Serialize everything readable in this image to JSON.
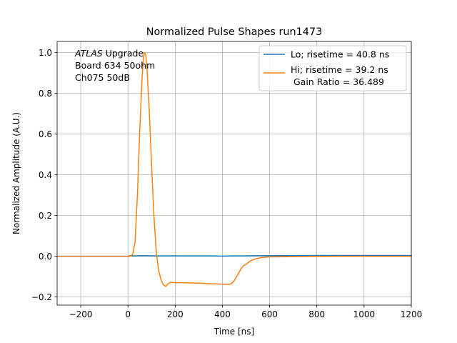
{
  "chart_data": {
    "type": "line",
    "title": "Normalized Pulse Shapes run1473",
    "xlabel": "Time [ns]",
    "ylabel": "Normalized Amplitude (A.U.)",
    "xlim": [
      -300,
      1200
    ],
    "ylim": [
      -0.24,
      1.055
    ],
    "x_ticks": [
      -200,
      0,
      200,
      400,
      600,
      800,
      1000,
      1200
    ],
    "x_tick_labels": [
      "−200",
      "0",
      "200",
      "400",
      "600",
      "800",
      "1000",
      "1200"
    ],
    "y_ticks": [
      -0.2,
      0.0,
      0.2,
      0.4,
      0.6,
      0.8,
      1.0
    ],
    "y_tick_labels": [
      "−0.2",
      "0.0",
      "0.2",
      "0.4",
      "0.6",
      "0.8",
      "1.0"
    ],
    "grid": true,
    "legend_position": "top-right",
    "annotation": {
      "atlas": "ATLAS",
      "upgrade": " Upgrade",
      "line2": "Board 634 50ohm",
      "line3": "Ch075 50dB"
    },
    "series": [
      {
        "name": "Lo; risetime = 40.8 ns",
        "color": "#1f77b4",
        "x": [
          -300,
          0,
          10,
          30,
          60,
          100,
          150,
          200,
          250,
          300,
          350,
          400,
          450,
          500,
          600,
          700,
          800,
          900,
          1000,
          1100,
          1200
        ],
        "y": [
          0.0,
          0.0,
          0.003,
          0.002,
          0.003,
          0.002,
          0.002,
          0.002,
          0.002,
          0.002,
          0.002,
          0.001,
          0.002,
          0.002,
          0.003,
          0.003,
          0.004,
          0.004,
          0.004,
          0.004,
          0.004
        ]
      },
      {
        "name": "Hi; risetime = 39.2 ns",
        "name_line2": " Gain Ratio = 36.489",
        "color": "#ff7f0e",
        "x": [
          -300,
          0,
          10,
          20,
          30,
          40,
          50,
          60,
          65,
          70,
          75,
          80,
          90,
          100,
          110,
          120,
          130,
          140,
          150,
          160,
          170,
          180,
          200,
          250,
          300,
          350,
          400,
          430,
          440,
          450,
          460,
          470,
          480,
          490,
          495,
          500,
          510,
          520,
          540,
          560,
          580,
          600,
          700,
          800,
          900,
          1000,
          1100,
          1200
        ],
        "y": [
          0.0,
          0.0,
          0.0,
          0.01,
          0.07,
          0.3,
          0.62,
          0.88,
          0.97,
          1.0,
          0.99,
          0.93,
          0.72,
          0.45,
          0.2,
          0.02,
          -0.07,
          -0.115,
          -0.14,
          -0.148,
          -0.135,
          -0.128,
          -0.13,
          -0.13,
          -0.132,
          -0.135,
          -0.137,
          -0.138,
          -0.133,
          -0.12,
          -0.1,
          -0.08,
          -0.06,
          -0.045,
          -0.043,
          -0.04,
          -0.03,
          -0.022,
          -0.013,
          -0.008,
          -0.005,
          -0.003,
          -0.002,
          -0.001,
          0.0,
          0.0,
          0.0,
          0.0
        ]
      }
    ]
  }
}
